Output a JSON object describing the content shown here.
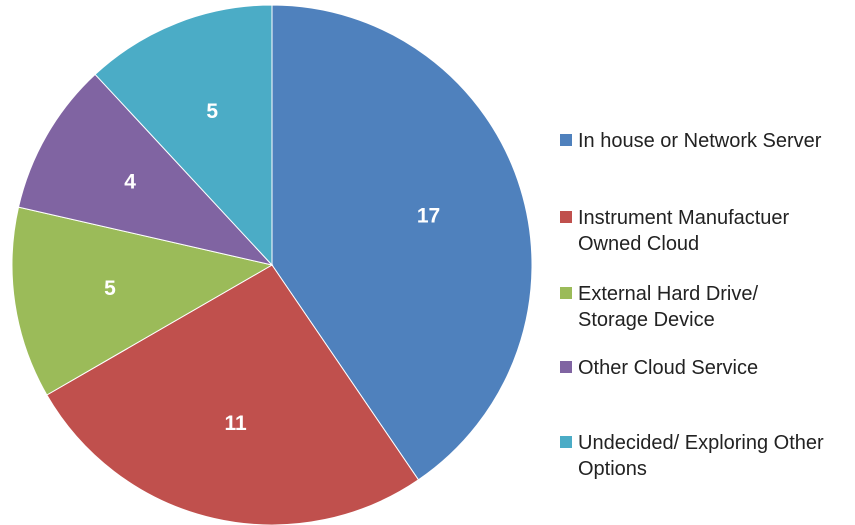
{
  "chart_data": {
    "type": "pie",
    "categories": [
      "In house or Network Server",
      "Instrument Manufactuer Owned Cloud",
      "External Hard Drive/ Storage Device",
      "Other Cloud Service",
      "Undecided/ Exploring Other Options"
    ],
    "values": [
      17,
      11,
      5,
      4,
      5
    ],
    "colors": [
      "#4f81bd",
      "#c0504d",
      "#9bbb59",
      "#8064a2",
      "#4bacc6"
    ],
    "legend": "right"
  }
}
